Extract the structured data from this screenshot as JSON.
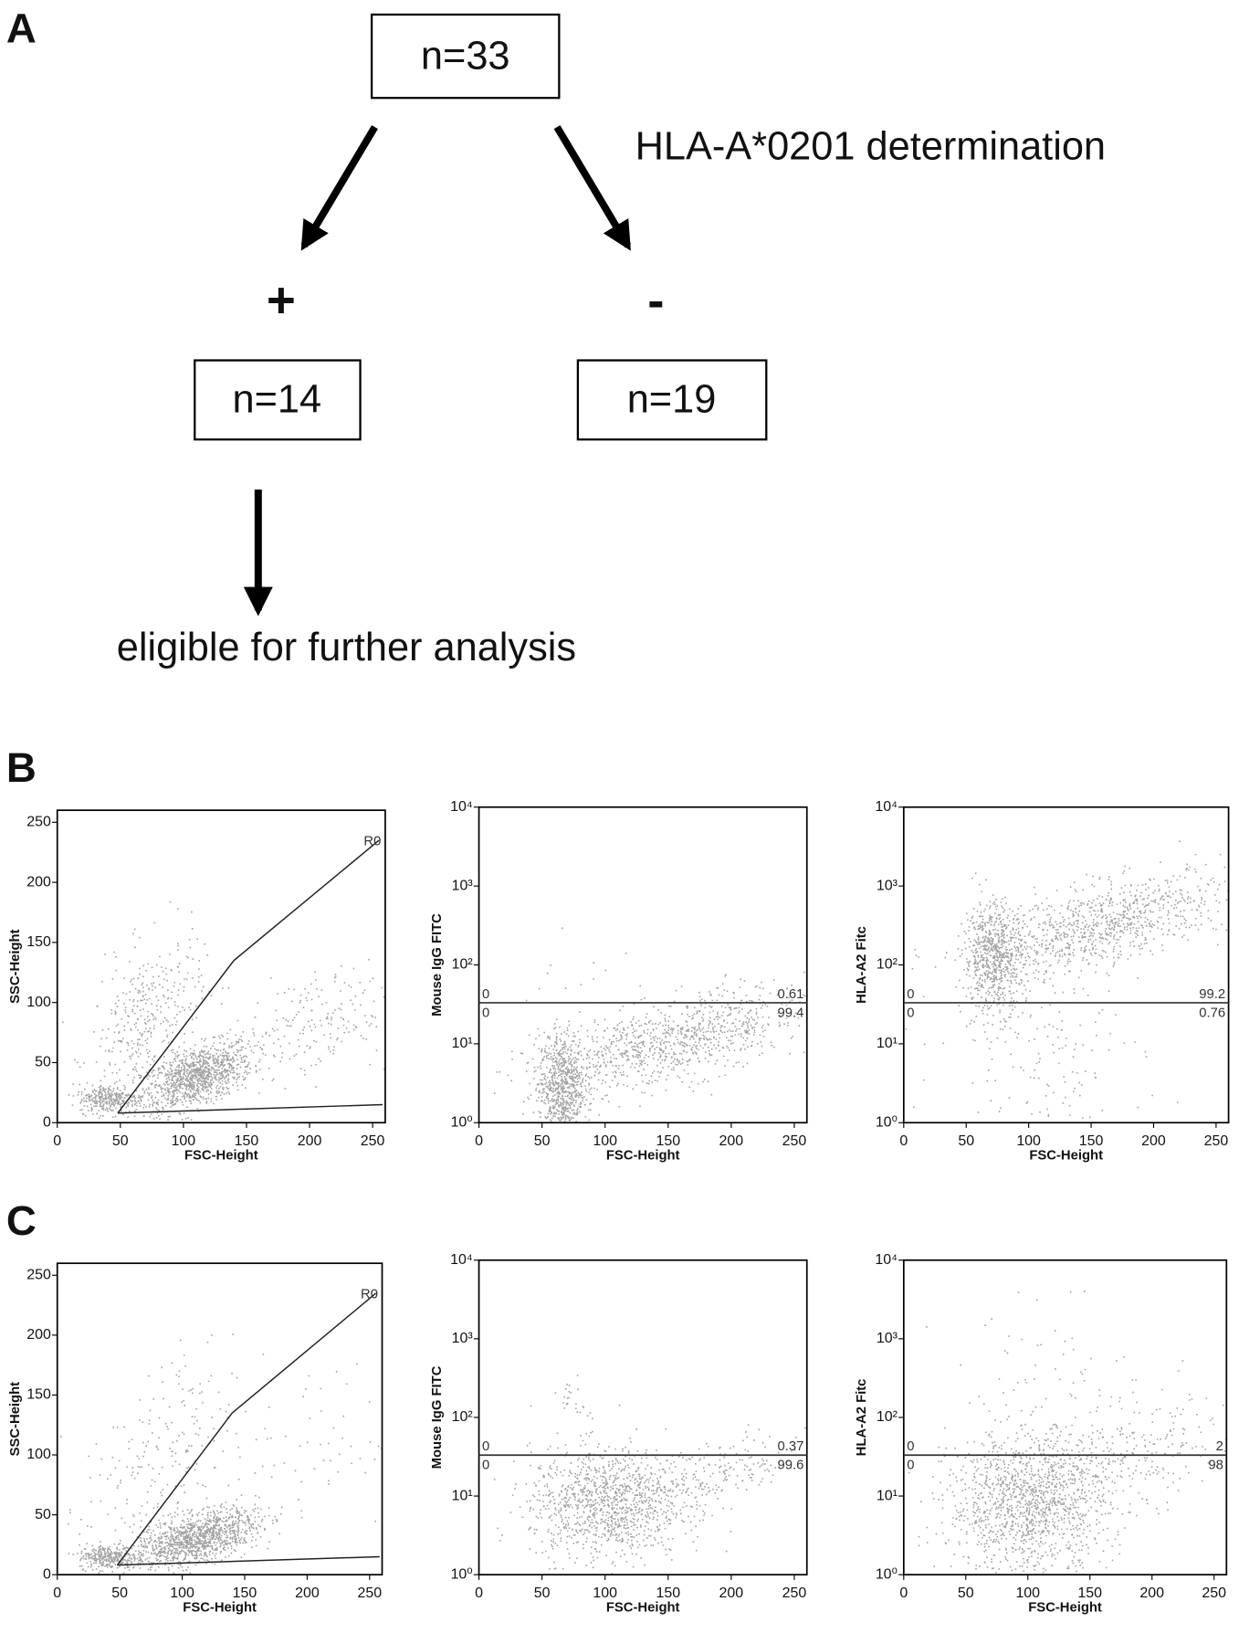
{
  "flowchart": {
    "label": "A",
    "top": "n=33",
    "annotation": "HLA-A*0201 determination",
    "positive": {
      "sign": "+",
      "box": "n=14"
    },
    "negative": {
      "sign": "-",
      "box": "n=19"
    },
    "outcome": "eligible for further analysis"
  },
  "rows": [
    {
      "label": "B",
      "plots": [
        {
          "x_label": "FSC-Height",
          "y_label": "SSC-Height",
          "xlim": [
            0,
            260
          ],
          "xticks": [
            0,
            50,
            100,
            150,
            200,
            250
          ],
          "ylim": [
            0,
            260
          ],
          "yticks": [
            0,
            50,
            100,
            150,
            200,
            250
          ],
          "gate_label": "R0"
        },
        {
          "x_label": "FSC-Height",
          "y_label": "Mouse IgG FITC",
          "xlim": [
            0,
            260
          ],
          "xticks": [
            0,
            50,
            100,
            150,
            200,
            250
          ],
          "ylim": [
            0,
            4
          ],
          "yticks": [
            {
              "value": 0,
              "label": "10⁰"
            },
            {
              "value": 1,
              "label": "10¹"
            },
            {
              "value": 2,
              "label": "10²"
            },
            {
              "value": 3,
              "label": "10³"
            },
            {
              "value": 4,
              "label": "10⁴"
            }
          ],
          "quadrants": {
            "upper_left": "0",
            "upper_right": "0.61",
            "lower_left": "0",
            "lower_right": "99.4"
          }
        },
        {
          "x_label": "FSC-Height",
          "y_label": "HLA-A2 Fitc",
          "xlim": [
            0,
            260
          ],
          "xticks": [
            0,
            50,
            100,
            150,
            200,
            250
          ],
          "ylim": [
            0,
            4
          ],
          "yticks": [
            {
              "value": 0,
              "label": "10⁰"
            },
            {
              "value": 1,
              "label": "10¹"
            },
            {
              "value": 2,
              "label": "10²"
            },
            {
              "value": 3,
              "label": "10³"
            },
            {
              "value": 4,
              "label": "10⁴"
            }
          ],
          "quadrants": {
            "upper_left": "0",
            "upper_right": "99.2",
            "lower_left": "0",
            "lower_right": "0.76"
          }
        }
      ]
    },
    {
      "label": "C",
      "plots": [
        {
          "x_label": "FSC-Height",
          "y_label": "SSC-Height",
          "xlim": [
            0,
            260
          ],
          "xticks": [
            0,
            50,
            100,
            150,
            200,
            250
          ],
          "ylim": [
            0,
            260
          ],
          "yticks": [
            0,
            50,
            100,
            150,
            200,
            250
          ],
          "gate_label": "R0"
        },
        {
          "x_label": "FSC-Height",
          "y_label": "Mouse IgG FITC",
          "xlim": [
            0,
            260
          ],
          "xticks": [
            0,
            50,
            100,
            150,
            200,
            250
          ],
          "ylim": [
            0,
            4
          ],
          "yticks": [
            {
              "value": 0,
              "label": "10⁰"
            },
            {
              "value": 1,
              "label": "10¹"
            },
            {
              "value": 2,
              "label": "10²"
            },
            {
              "value": 3,
              "label": "10³"
            },
            {
              "value": 4,
              "label": "10⁴"
            }
          ],
          "quadrants": {
            "upper_left": "0",
            "upper_right": "0.37",
            "lower_left": "0",
            "lower_right": "99.6"
          }
        },
        {
          "x_label": "FSC-Height",
          "y_label": "HLA-A2 Fitc",
          "xlim": [
            0,
            260
          ],
          "xticks": [
            0,
            50,
            100,
            150,
            200,
            250
          ],
          "ylim": [
            0,
            4
          ],
          "yticks": [
            {
              "value": 0,
              "label": "10⁰"
            },
            {
              "value": 1,
              "label": "10¹"
            },
            {
              "value": 2,
              "label": "10²"
            },
            {
              "value": 3,
              "label": "10³"
            },
            {
              "value": 4,
              "label": "10⁴"
            }
          ],
          "quadrants": {
            "upper_left": "0",
            "upper_right": "2",
            "lower_left": "0",
            "lower_right": "98"
          }
        }
      ]
    }
  ]
}
